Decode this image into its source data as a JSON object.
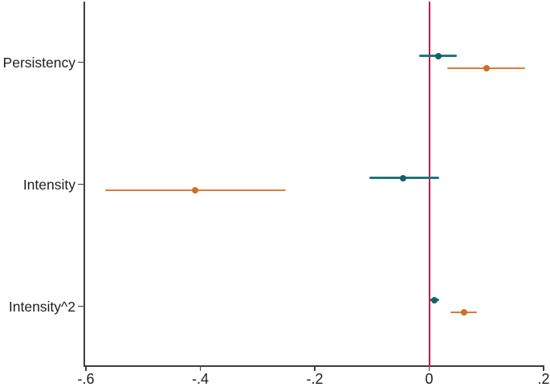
{
  "chart_data": {
    "type": "scatter",
    "subtype": "coefficient-plot-horizontal-ci",
    "title": "",
    "xlabel": "",
    "ylabel": "",
    "grid": false,
    "legend": "none",
    "background": "#ffffff",
    "axis_color": "#3d3d3d",
    "text_color": "#1e1e1e",
    "categories": [
      "Persistency",
      "Intensity",
      "Intensity^2"
    ],
    "x_ticks": [
      {
        "label": "-.6",
        "value": -0.6
      },
      {
        "label": "-.4",
        "value": -0.4
      },
      {
        "label": "-.2",
        "value": -0.2
      },
      {
        "label": "0",
        "value": 0
      },
      {
        "label": ".2",
        "value": 0.2
      }
    ],
    "xlim": [
      -0.603,
      0.201
    ],
    "ref_line": {
      "value": 0,
      "color": "#c8144e"
    },
    "series": [
      {
        "name": "teal-series",
        "line_color": "#1f767a",
        "marker_color": "#15616a",
        "points": [
          {
            "category": "Persistency",
            "estimate": 0.016,
            "ci_low": -0.017,
            "ci_high": 0.048
          },
          {
            "category": "Intensity",
            "estimate": -0.045,
            "ci_low": -0.105,
            "ci_high": 0.017
          },
          {
            "category": "Intensity^2",
            "estimate": 0.009,
            "ci_low": 0.0,
            "ci_high": 0.018
          }
        ]
      },
      {
        "name": "orange-series",
        "line_color": "#dd7c35",
        "marker_color": "#d06d27",
        "points": [
          {
            "category": "Persistency",
            "estimate": 0.1,
            "ci_low": 0.031,
            "ci_high": 0.168
          },
          {
            "category": "Intensity",
            "estimate": -0.409,
            "ci_low": -0.566,
            "ci_high": -0.25
          },
          {
            "category": "Intensity^2",
            "estimate": 0.061,
            "ci_low": 0.037,
            "ci_high": 0.083
          }
        ]
      }
    ]
  }
}
